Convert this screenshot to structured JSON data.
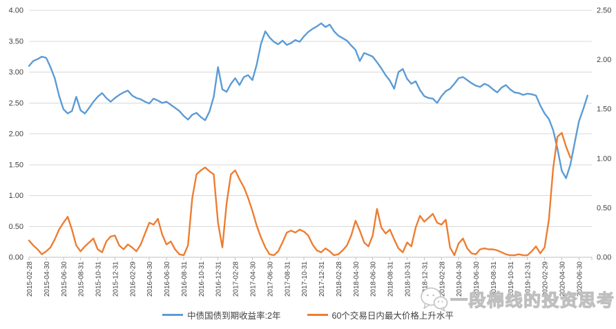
{
  "chart_data": {
    "type": "line",
    "title": "",
    "grid": "horizontal",
    "legend_position": "bottom",
    "x_tick_interval_months": 2,
    "x_total_months": 65.5,
    "x_tick_labels": [
      "2015-02-28",
      "2015-04-30",
      "2015-06-30",
      "2015-08-31",
      "2015-10-31",
      "2015-12-31",
      "2016-02-29",
      "2016-04-30",
      "2016-06-30",
      "2016-08-31",
      "2016-10-31",
      "2016-12-31",
      "2017-02-28",
      "2017-04-30",
      "2017-06-30",
      "2017-08-31",
      "2017-10-31",
      "2017-12-31",
      "2018-02-28",
      "2018-04-30",
      "2018-06-30",
      "2018-08-31",
      "2018-10-31",
      "2018-12-31",
      "2019-02-28",
      "2019-04-30",
      "2019-06-30",
      "2019-08-31",
      "2019-10-31",
      "2019-12-31",
      "2020-02-29",
      "2020-04-30",
      "2020-06-30"
    ],
    "left_axis": {
      "min": 0,
      "max": 4,
      "step": 0.5,
      "tick_labels_top_to_bottom": [
        "4.00",
        "3.50",
        "3.00",
        "2.50",
        "2.00",
        "1.50",
        "1.00",
        "0.50",
        "0.00"
      ]
    },
    "right_axis": {
      "min": 0,
      "max": 2.5,
      "step": 0.5,
      "tick_labels_top_to_bottom": [
        "2.50",
        "2.00",
        "1.50",
        "1.00",
        "0.50",
        "0.00"
      ]
    },
    "series": [
      {
        "name": "中债国债到期收益率:2年",
        "color": "#5B9BD5",
        "axis": "left",
        "x_start_month": 0,
        "x_step_months": 0.5,
        "values": [
          3.1,
          3.18,
          3.21,
          3.25,
          3.23,
          3.08,
          2.9,
          2.62,
          2.4,
          2.33,
          2.37,
          2.6,
          2.38,
          2.33,
          2.42,
          2.52,
          2.6,
          2.66,
          2.58,
          2.52,
          2.58,
          2.63,
          2.67,
          2.7,
          2.62,
          2.58,
          2.56,
          2.52,
          2.49,
          2.57,
          2.54,
          2.5,
          2.52,
          2.47,
          2.42,
          2.37,
          2.29,
          2.23,
          2.31,
          2.34,
          2.27,
          2.22,
          2.36,
          2.6,
          3.08,
          2.72,
          2.68,
          2.81,
          2.9,
          2.79,
          2.92,
          2.95,
          2.87,
          3.12,
          3.46,
          3.66,
          3.56,
          3.49,
          3.45,
          3.51,
          3.44,
          3.47,
          3.52,
          3.49,
          3.58,
          3.65,
          3.7,
          3.74,
          3.79,
          3.73,
          3.77,
          3.66,
          3.59,
          3.55,
          3.51,
          3.43,
          3.36,
          3.18,
          3.31,
          3.28,
          3.25,
          3.16,
          3.06,
          2.95,
          2.86,
          2.73,
          3.0,
          3.05,
          2.89,
          2.81,
          2.85,
          2.71,
          2.61,
          2.58,
          2.57,
          2.5,
          2.61,
          2.69,
          2.73,
          2.81,
          2.9,
          2.92,
          2.87,
          2.82,
          2.78,
          2.76,
          2.81,
          2.78,
          2.72,
          2.67,
          2.75,
          2.79,
          2.72,
          2.67,
          2.66,
          2.63,
          2.65,
          2.64,
          2.62,
          2.46,
          2.33,
          2.24,
          2.06,
          1.76,
          1.4,
          1.28,
          1.5,
          1.85,
          2.2,
          2.4,
          2.62,
          null
        ]
      },
      {
        "name": "60个交易日内最大价格上升水平",
        "color": "#ED7D31",
        "axis": "right",
        "x_start_month": 0,
        "x_step_months": 0.5,
        "values": [
          0.17,
          0.12,
          0.08,
          0.03,
          0.06,
          0.1,
          0.18,
          0.28,
          0.35,
          0.41,
          0.28,
          0.12,
          0.06,
          0.11,
          0.15,
          0.19,
          0.08,
          0.05,
          0.16,
          0.21,
          0.22,
          0.12,
          0.08,
          0.13,
          0.1,
          0.06,
          0.13,
          0.24,
          0.35,
          0.33,
          0.39,
          0.23,
          0.13,
          0.16,
          0.08,
          0.03,
          0.02,
          0.12,
          0.6,
          0.84,
          0.88,
          0.91,
          0.87,
          0.84,
          0.35,
          0.1,
          0.55,
          0.84,
          0.88,
          0.79,
          0.71,
          0.6,
          0.47,
          0.32,
          0.2,
          0.1,
          0.03,
          0.02,
          0.06,
          0.15,
          0.25,
          0.27,
          0.25,
          0.28,
          0.26,
          0.22,
          0.13,
          0.07,
          0.05,
          0.09,
          0.06,
          0.02,
          0.03,
          0.07,
          0.12,
          0.22,
          0.37,
          0.27,
          0.15,
          0.11,
          0.22,
          0.49,
          0.3,
          0.24,
          0.28,
          0.18,
          0.09,
          0.05,
          0.15,
          0.11,
          0.3,
          0.42,
          0.36,
          0.4,
          0.44,
          0.35,
          0.33,
          0.38,
          0.1,
          0.02,
          0.14,
          0.19,
          0.09,
          0.04,
          0.03,
          0.08,
          0.09,
          0.08,
          0.08,
          0.07,
          0.05,
          0.03,
          0.02,
          0.02,
          0.03,
          0.02,
          0.02,
          0.06,
          0.11,
          0.04,
          0.1,
          0.38,
          0.9,
          1.22,
          1.26,
          1.12,
          1.01,
          null,
          null,
          null,
          null,
          null
        ]
      }
    ],
    "colors": {
      "gridline": "#D9D9D9",
      "axis_line": "#BFBFBF",
      "axis_text": "#404040"
    }
  },
  "legend": {
    "items": [
      {
        "label": "中债国债到期收益率:2年",
        "color": "#5B9BD5"
      },
      {
        "label": "60个交易日内最大价格上升水平",
        "color": "#ED7D31"
      }
    ]
  },
  "watermark": {
    "text": "一段棉线的投资思考",
    "icon": "chat-bubbles"
  }
}
